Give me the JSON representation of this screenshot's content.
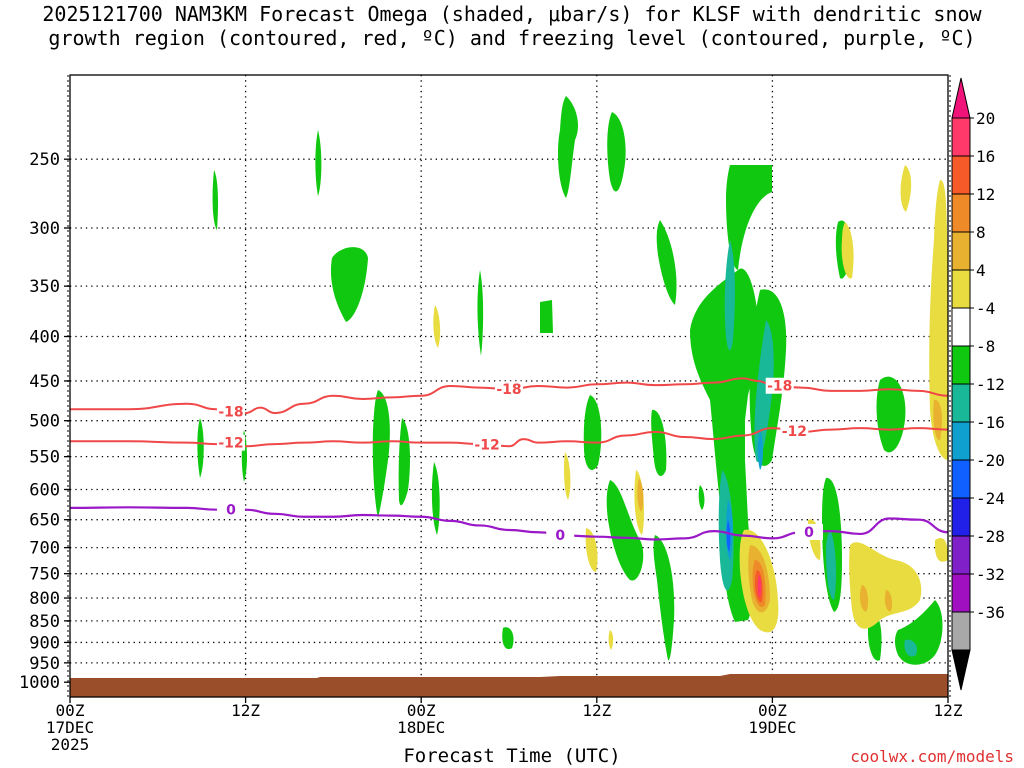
{
  "title_line1": "2025121700 NAM3KM Forecast Omega (shaded, μbar/s) for KLSF with dendritic snow",
  "title_line2": "growth region (contoured, red, ºC) and freezing level (contoured, purple, ºC)",
  "credit": "coolwx.com/models",
  "chart_data": {
    "type": "heatmap",
    "title": "2025121700 NAM3KM Forecast Omega (shaded, μbar/s) for KLSF with dendritic snow growth region (contoured, red, ºC) and freezing level (contoured, purple, ºC)",
    "xlabel": "Forecast Time (UTC)",
    "ylabel": "",
    "xlim_hours": [
      0,
      60
    ],
    "ylim_hpa": [
      1040,
      200
    ],
    "y_ticks": [
      250,
      300,
      350,
      400,
      450,
      500,
      550,
      600,
      650,
      700,
      750,
      800,
      850,
      900,
      950,
      1000
    ],
    "x_ticks": [
      {
        "hour": 0,
        "lines": [
          "00Z",
          "17DEC",
          "2025"
        ]
      },
      {
        "hour": 12,
        "lines": [
          "12Z"
        ]
      },
      {
        "hour": 24,
        "lines": [
          "00Z",
          "18DEC"
        ]
      },
      {
        "hour": 36,
        "lines": [
          "12Z"
        ]
      },
      {
        "hour": 48,
        "lines": [
          "00Z",
          "19DEC"
        ]
      },
      {
        "hour": 60,
        "lines": [
          "12Z"
        ]
      }
    ],
    "colorbar": {
      "labels": [
        "20",
        "16",
        "12",
        "8",
        "4",
        "-4",
        "-8",
        "-12",
        "-16",
        "-20",
        "-24",
        "-28",
        "-32",
        "-36"
      ],
      "colors": [
        "#ff3a6a",
        "#f55a28",
        "#ee8a28",
        "#e8b230",
        "#e8dc40",
        "#ffffff",
        "#10c810",
        "#18b898",
        "#10a0d0",
        "#1060ff",
        "#2020e8",
        "#8020c8",
        "#a010c0",
        "#a8a8a8"
      ],
      "top_color": "#f0147a",
      "bottom_color": "#000000"
    },
    "freezing_level": {
      "name": "freezing level 0ºC",
      "color": "#9a18c8",
      "label": "0",
      "hours": [
        0,
        4,
        8,
        10,
        12,
        14,
        16,
        18,
        20,
        22,
        24,
        26,
        28,
        30,
        32,
        34,
        36,
        38,
        40,
        42,
        44,
        46,
        48,
        50,
        52,
        54,
        56,
        58,
        60
      ],
      "hpa": [
        630,
        629,
        630,
        633,
        633,
        640,
        645,
        645,
        642,
        643,
        645,
        652,
        660,
        668,
        672,
        678,
        680,
        682,
        685,
        683,
        670,
        678,
        683,
        672,
        670,
        675,
        648,
        650,
        672
      ],
      "label_hours": [
        11,
        33.5,
        50.5
      ]
    },
    "dendritic_contours": [
      {
        "name": "-18ºC",
        "color": "#f04848",
        "label": "-18",
        "hours": [
          0,
          4,
          8,
          10,
          11,
          12,
          13,
          14,
          16,
          18,
          20,
          22,
          24,
          26,
          28,
          30,
          32,
          34,
          36,
          38,
          40,
          42,
          44,
          46,
          47,
          48,
          50,
          52,
          54,
          56,
          58,
          60
        ],
        "hpa": [
          485,
          485,
          478,
          485,
          488,
          490,
          483,
          490,
          478,
          468,
          472,
          470,
          468,
          456,
          458,
          460,
          456,
          458,
          454,
          452,
          455,
          454,
          452,
          447,
          450,
          455,
          458,
          462,
          462,
          460,
          462,
          468
        ],
        "label_hours": [
          11,
          30,
          48.5
        ]
      },
      {
        "name": "-12ºC",
        "color": "#f04848",
        "label": "-12",
        "hours": [
          0,
          4,
          8,
          10,
          11,
          12,
          14,
          16,
          18,
          20,
          22,
          24,
          26,
          28,
          30,
          31,
          32,
          34,
          36,
          38,
          40,
          42,
          44,
          46,
          48,
          50,
          52,
          54,
          56,
          58,
          60
        ],
        "hpa": [
          528,
          528,
          530,
          532,
          530,
          535,
          532,
          530,
          528,
          530,
          528,
          530,
          530,
          532,
          535,
          525,
          530,
          528,
          530,
          520,
          515,
          522,
          525,
          520,
          510,
          515,
          512,
          510,
          512,
          510,
          512
        ],
        "label_hours": [
          11,
          28.5,
          49.5
        ]
      }
    ]
  }
}
